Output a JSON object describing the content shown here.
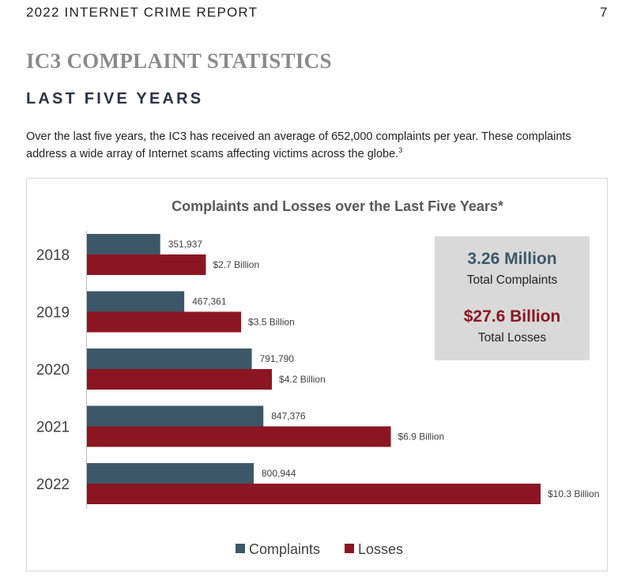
{
  "header": {
    "title": "2022 INTERNET CRIME REPORT",
    "page_number": "7"
  },
  "section_title": "IC3 COMPLAINT STATISTICS",
  "subsection_title": "LAST FIVE YEARS",
  "intro": {
    "text": "Over the last five years, the IC3 has received an average of 652,000 complaints per year. These complaints address a wide array of Internet scams affecting victims across the globe.",
    "footnote": "3"
  },
  "summary": {
    "complaints_value": "3.26 Million",
    "complaints_label": "Total Complaints",
    "losses_value": "$27.6 Billion",
    "losses_label": "Total Losses"
  },
  "colors": {
    "complaints": "#3c5868",
    "losses": "#8b1622",
    "summary_bg": "#d9d9d9"
  },
  "chart_data": {
    "type": "bar",
    "orientation": "horizontal",
    "title": "Complaints and Losses over the Last Five Years*",
    "categories": [
      "2018",
      "2019",
      "2020",
      "2021",
      "2022"
    ],
    "series": [
      {
        "name": "Complaints",
        "values": [
          351937,
          467361,
          791790,
          847376,
          800944
        ],
        "labels": [
          "351,937",
          "467,361",
          "791,790",
          "847,376",
          "800,944"
        ]
      },
      {
        "name": "Losses",
        "values": [
          2.7,
          3.5,
          4.2,
          6.9,
          10.3
        ],
        "labels": [
          "$2.7 Billion",
          "$3.5 Billion",
          "$4.2 Billion",
          "$6.9 Billion",
          "$10.3 Billion"
        ]
      }
    ],
    "legend_position": "bottom-center",
    "grid": false
  }
}
